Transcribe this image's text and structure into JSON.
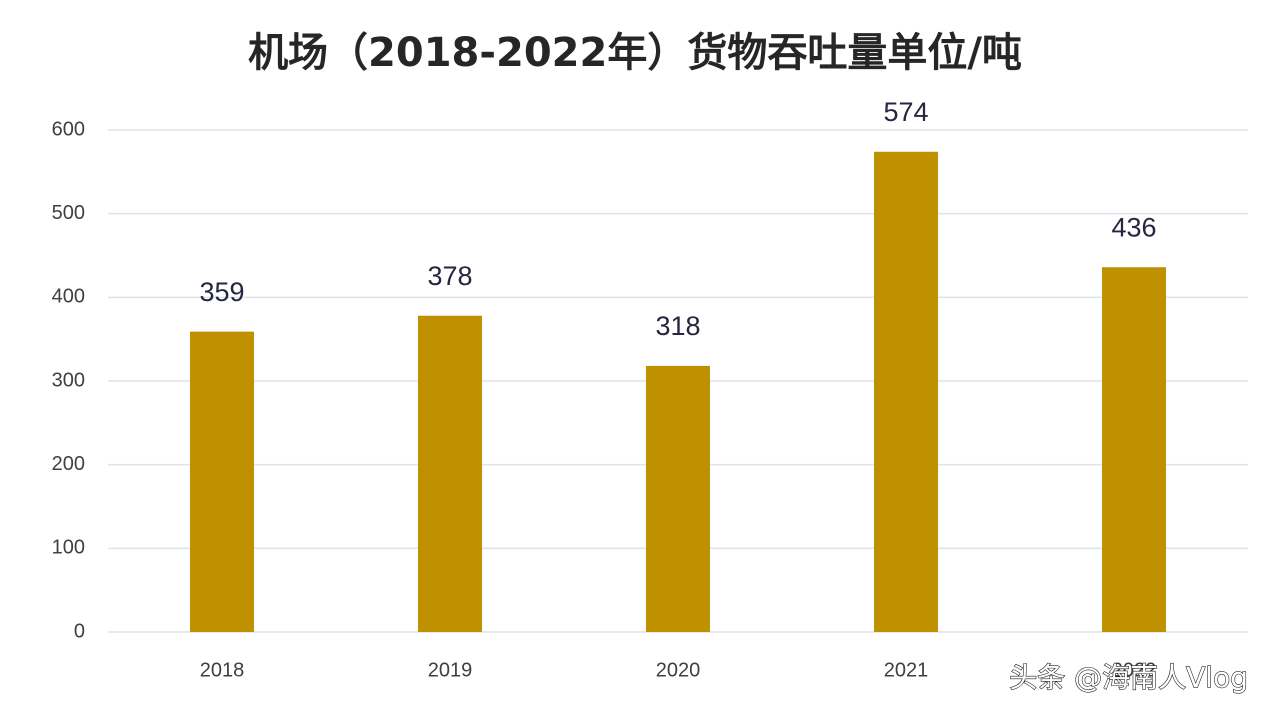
{
  "chart_data": {
    "type": "bar",
    "title": "机场（2018-2022年）货物吞吐量单位/吨",
    "categories": [
      "2018",
      "2019",
      "2020",
      "2021",
      "2022"
    ],
    "values": [
      359,
      378,
      318,
      574,
      436
    ],
    "color": "#bf9000",
    "ylim": [
      0,
      600
    ],
    "yticks": [
      0,
      100,
      200,
      300,
      400,
      500,
      600
    ],
    "grid": true,
    "watermark": "头条 @海南人Vlog"
  }
}
